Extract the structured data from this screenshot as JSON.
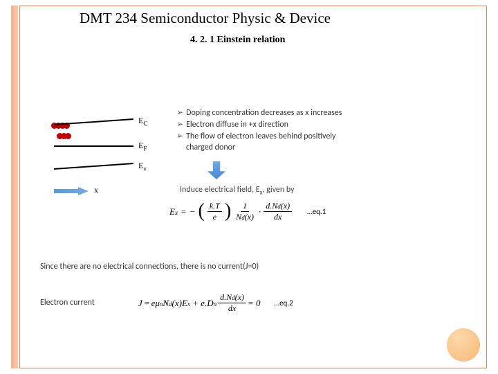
{
  "header": {
    "title": "DMT 234 Semiconductor Physic & Device",
    "subtitle": "4. 2. 1 Einstein relation"
  },
  "diagram": {
    "ec_label": "E",
    "ec_sub": "C",
    "ef_label": "E",
    "ef_sub": "F",
    "ev_label": "E",
    "ev_sub": "v",
    "x_label": "x",
    "dot_color": "#c00000",
    "arrow_color": "#6699dd"
  },
  "bullets": {
    "b1": "Doping concentration decreases as x increases",
    "b2": "Electron diffuse in +x direction",
    "b3": "The flow of electron leaves behind positively",
    "b3b": "charged donor"
  },
  "induce": {
    "text_prefix": "Induce electrical field, E",
    "text_sub": "x",
    "text_suffix": ", given by"
  },
  "eq1": {
    "lhs": "E",
    "lhs_sub": "x",
    "eq": " = ",
    "minus": "−",
    "frac1_num": "k.T",
    "frac1_den": "e",
    "frac2_num": "1",
    "frac2_den_a": "N",
    "frac2_den_sub": "d",
    "frac2_den_b": "(x)",
    "frac3_num_a": "d.N",
    "frac3_num_sub": "d",
    "frac3_num_b": "(x)",
    "frac3_den": "dx",
    "label": "…eq.1"
  },
  "since": "Since there are no electrical connections, there is no current(J=0)",
  "electron_current": "Electron current",
  "eq2": {
    "J": "J",
    "eq": " = ",
    "t1": "eμ",
    "t1_sub": "n",
    "t2": "N",
    "t2_sub": "d",
    "t3": "(x)E",
    "t3_sub": "x",
    "plus": " + e.D",
    "plus_sub": "n",
    "frac_num_a": "d.N",
    "frac_num_sub": "d",
    "frac_num_b": "(x)",
    "frac_den": "dx",
    "zero": "= 0",
    "label": "…eq.2"
  },
  "colors": {
    "frame": "#f08050",
    "stripe": "#f5b090",
    "circle": "#f5b878"
  }
}
